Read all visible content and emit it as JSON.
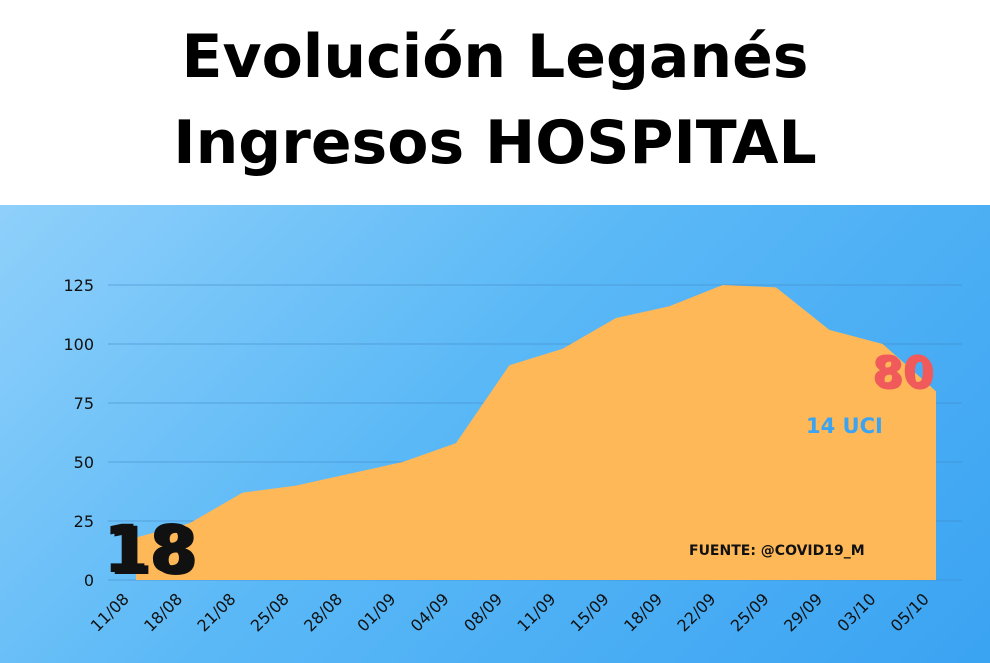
{
  "title": {
    "line1": "Evolución Leganés",
    "line2": "Ingresos HOSPITAL"
  },
  "chart_data": {
    "type": "area",
    "x": [
      "11/08",
      "18/08",
      "21/08",
      "25/08",
      "28/08",
      "01/09",
      "04/09",
      "08/09",
      "11/09",
      "15/09",
      "18/09",
      "22/09",
      "25/09",
      "29/09",
      "03/10",
      "05/10"
    ],
    "values": [
      18,
      24,
      37,
      40,
      45,
      50,
      58,
      91,
      98,
      111,
      116,
      125,
      124,
      106,
      100,
      80
    ],
    "ylim": [
      0,
      125
    ],
    "yticks": [
      0,
      25,
      50,
      75,
      100,
      125
    ],
    "grid": true,
    "fill_color": "#ffb858",
    "annotations": {
      "start_value": "18",
      "end_value": "80",
      "uci_label": "14 UCI",
      "source_label": "FUENTE: @COVID19_M"
    }
  }
}
